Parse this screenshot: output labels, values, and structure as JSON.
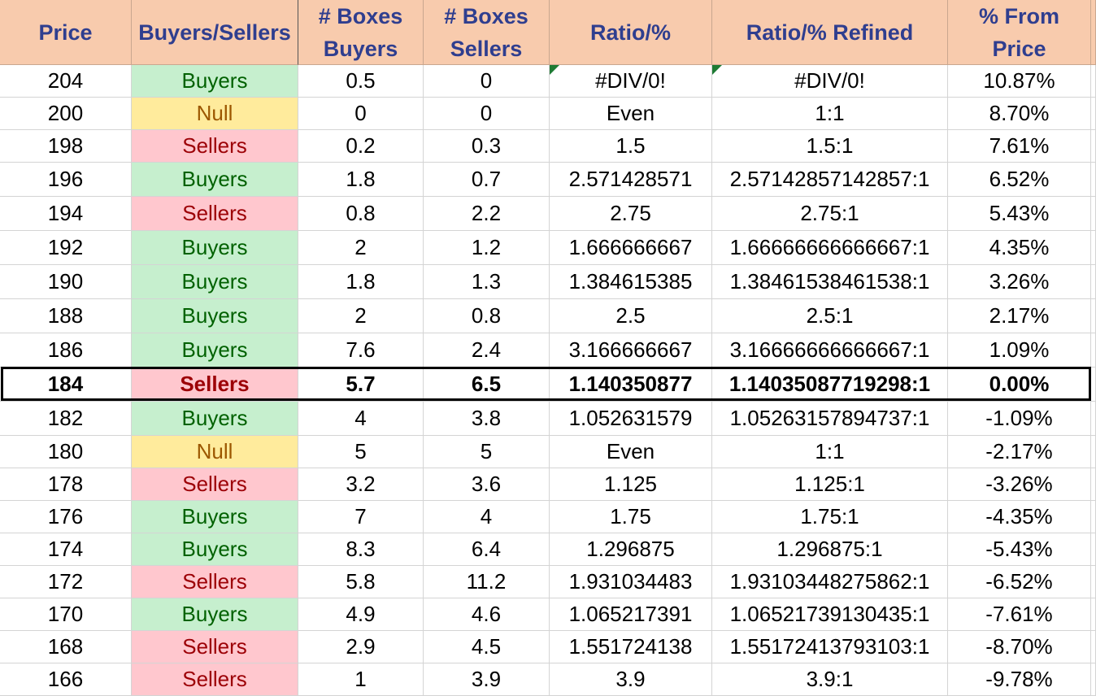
{
  "headers": [
    "Price",
    "Buyers/Sellers",
    "# Boxes\nBuyers",
    "# Boxes\nSellers",
    "Ratio/%",
    "Ratio/% Refined",
    "% From\nPrice"
  ],
  "rows": [
    [
      "204",
      "Buyers",
      "0.5",
      "0",
      "#DIV/0!",
      "#DIV/0!",
      "10.87%"
    ],
    [
      "200",
      "Null",
      "0",
      "0",
      "Even",
      "1:1",
      "8.70%"
    ],
    [
      "198",
      "Sellers",
      "0.2",
      "0.3",
      "1.5",
      "1.5:1",
      "7.61%"
    ],
    [
      "196",
      "Buyers",
      "1.8",
      "0.7",
      "2.571428571",
      "2.57142857142857:1",
      "6.52%"
    ],
    [
      "194",
      "Sellers",
      "0.8",
      "2.2",
      "2.75",
      "2.75:1",
      "5.43%"
    ],
    [
      "192",
      "Buyers",
      "2",
      "1.2",
      "1.666666667",
      "1.66666666666667:1",
      "4.35%"
    ],
    [
      "190",
      "Buyers",
      "1.8",
      "1.3",
      "1.384615385",
      "1.38461538461538:1",
      "3.26%"
    ],
    [
      "188",
      "Buyers",
      "2",
      "0.8",
      "2.5",
      "2.5:1",
      "2.17%"
    ],
    [
      "186",
      "Buyers",
      "7.6",
      "2.4",
      "3.166666667",
      "3.16666666666667:1",
      "1.09%"
    ],
    [
      "184",
      "Sellers",
      "5.7",
      "6.5",
      "1.140350877",
      "1.14035087719298:1",
      "0.00%"
    ],
    [
      "182",
      "Buyers",
      "4",
      "3.8",
      "1.052631579",
      "1.05263157894737:1",
      "-1.09%"
    ],
    [
      "180",
      "Null",
      "5",
      "5",
      "Even",
      "1:1",
      "-2.17%"
    ],
    [
      "178",
      "Sellers",
      "3.2",
      "3.6",
      "1.125",
      "1.125:1",
      "-3.26%"
    ],
    [
      "176",
      "Buyers",
      "7",
      "4",
      "1.75",
      "1.75:1",
      "-4.35%"
    ],
    [
      "174",
      "Buyers",
      "8.3",
      "6.4",
      "1.296875",
      "1.296875:1",
      "-5.43%"
    ],
    [
      "172",
      "Sellers",
      "5.8",
      "11.2",
      "1.931034483",
      "1.93103448275862:1",
      "-6.52%"
    ],
    [
      "170",
      "Buyers",
      "4.9",
      "4.6",
      "1.065217391",
      "1.06521739130435:1",
      "-7.61%"
    ],
    [
      "168",
      "Sellers",
      "2.9",
      "4.5",
      "1.551724138",
      "1.55172413793103:1",
      "-8.70%"
    ],
    [
      "166",
      "Sellers",
      "1",
      "3.9",
      "3.9",
      "3.9:1",
      "-9.78%"
    ]
  ],
  "highlighted_row": 9,
  "colors": {
    "header_bg": "#f8cbad",
    "header_text": "#2f3e8f",
    "buyers_bg": "#c6efce",
    "buyers_text": "#006100",
    "sellers_bg": "#ffc7ce",
    "sellers_text": "#9c0006",
    "null_bg": "#ffeb9c",
    "null_text": "#9c5700"
  }
}
